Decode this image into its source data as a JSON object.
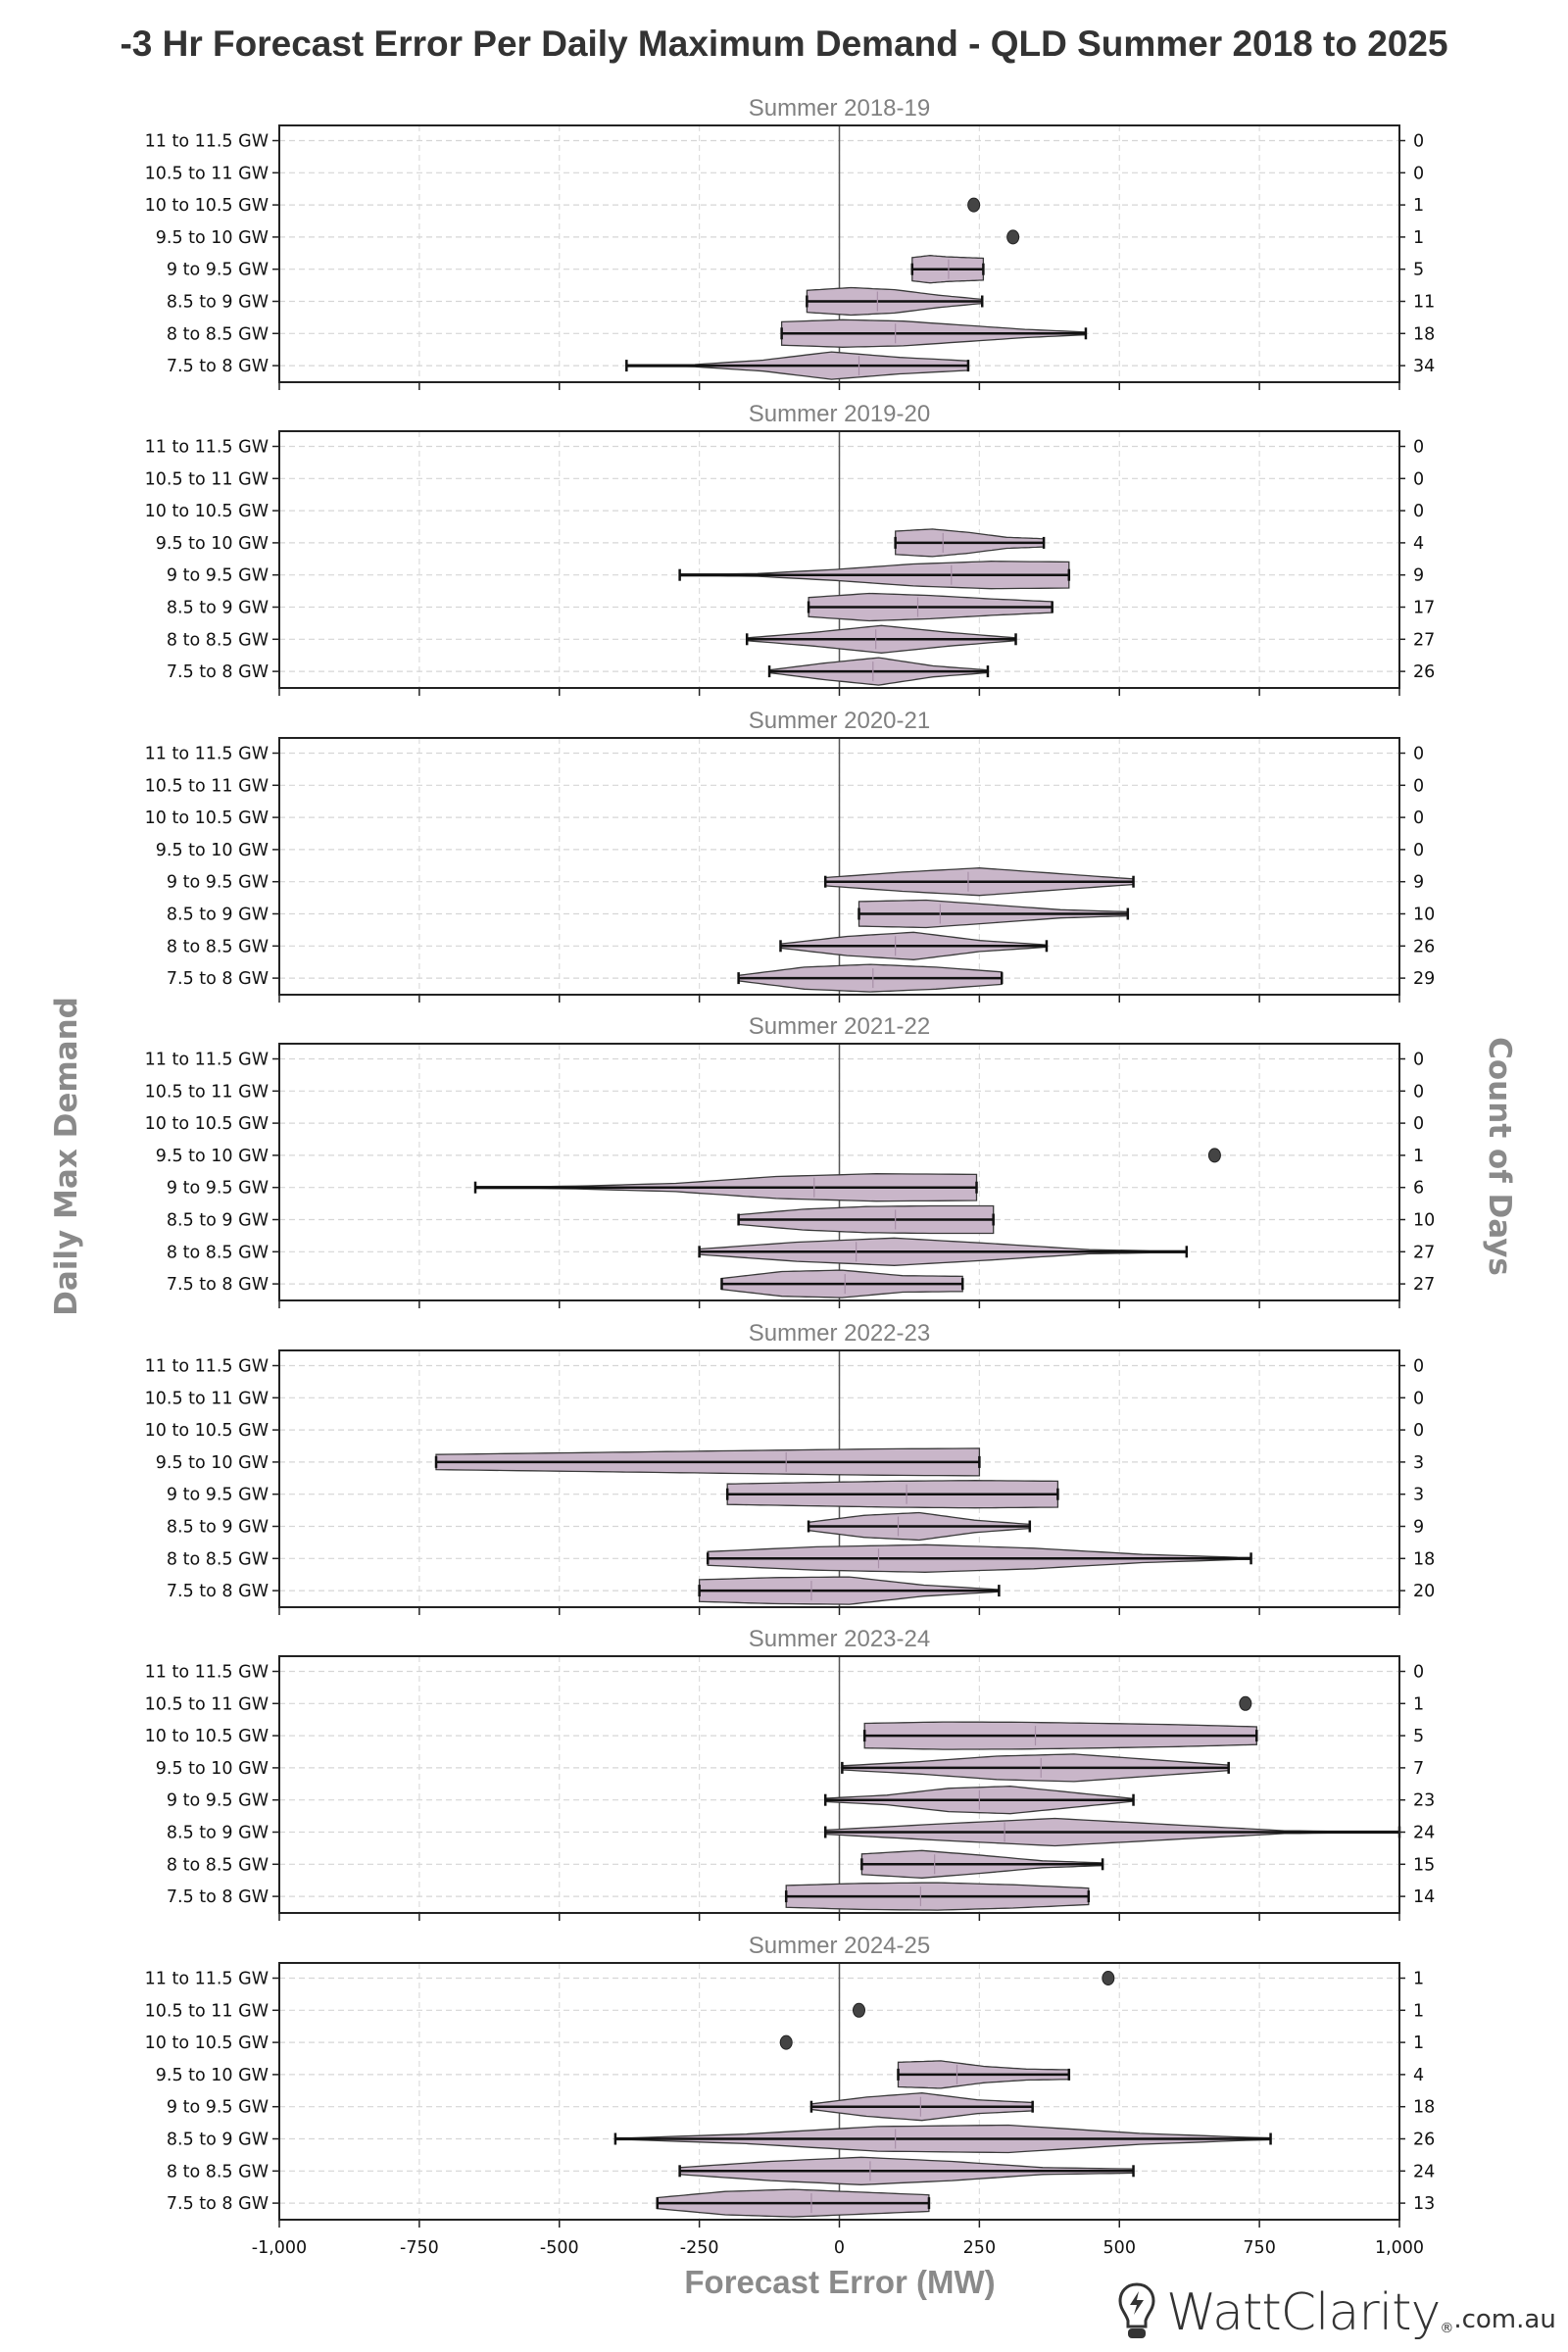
{
  "chart_data": {
    "type": "violin",
    "title": "-3 Hr Forecast Error Per Daily Maximum Demand - QLD Summer 2018 to 2025",
    "xlabel": "Forecast Error (MW)",
    "ylabel": "Daily Max Demand",
    "ylabel_right": "Count of Days",
    "xlim": [
      -1000,
      1000
    ],
    "x_ticks": [
      -1000,
      -750,
      -500,
      -250,
      0,
      250,
      500,
      750,
      1000
    ],
    "x_tick_labels": [
      "-1,000",
      "-750",
      "-500",
      "-250",
      "0",
      "250",
      "500",
      "750",
      "1,000"
    ],
    "categories": [
      "11 to 11.5 GW",
      "10.5 to 11 GW",
      "10 to 10.5 GW",
      "9.5 to 10 GW",
      "9 to 9.5 GW",
      "8.5 to 9 GW",
      "8 to 8.5 GW",
      "7.5 to 8 GW"
    ],
    "grid": true,
    "colors": {
      "violin_fill": "#c9b6c9",
      "violin_edge": "#3a3a3a",
      "point": "#444444",
      "title": "#333333",
      "axis_label": "#8a8a8a",
      "panel_title": "#808080"
    },
    "panels": [
      {
        "title": "Summer 2018-19",
        "counts": [
          0,
          0,
          1,
          1,
          5,
          11,
          18,
          34
        ],
        "violins": [
          null,
          null,
          {
            "point": 240
          },
          {
            "point": 310
          },
          {
            "min": 130,
            "max": 257,
            "median": 195,
            "peak": 160,
            "shape": [
              0.85,
              1,
              0.9,
              0.85,
              0.8
            ]
          },
          {
            "min": -58,
            "max": 255,
            "median": 68,
            "peak": 10,
            "shape": [
              0.8,
              1,
              0.85,
              0.45,
              0.15
            ]
          },
          {
            "min": -103,
            "max": 440,
            "median": 100,
            "peak": 20,
            "shape": [
              0.85,
              1,
              0.9,
              0.6,
              0.3,
              0.1
            ]
          },
          {
            "min": -380,
            "max": 230,
            "median": 35,
            "peak": 80,
            "shape": [
              0.02,
              0.08,
              0.4,
              1,
              0.6,
              0.35
            ]
          }
        ]
      },
      {
        "title": "Summer 2019-20",
        "counts": [
          0,
          0,
          0,
          4,
          9,
          17,
          27,
          26
        ],
        "violins": [
          null,
          null,
          null,
          {
            "min": 100,
            "max": 365,
            "median": 185,
            "peak": 145,
            "shape": [
              0.85,
              1,
              0.75,
              0.4,
              0.3
            ]
          },
          {
            "min": -285,
            "max": 410,
            "median": 200,
            "peak": 300,
            "shape": [
              0.04,
              0.1,
              0.4,
              0.8,
              1,
              0.95
            ]
          },
          {
            "min": -55,
            "max": 380,
            "median": 140,
            "peak": 100,
            "shape": [
              0.7,
              1,
              0.85,
              0.6,
              0.4
            ]
          },
          {
            "min": -165,
            "max": 315,
            "median": 65,
            "peak": 50,
            "shape": [
              0.1,
              0.5,
              1,
              0.5,
              0.1
            ]
          },
          {
            "min": -125,
            "max": 265,
            "median": 60,
            "peak": 40,
            "shape": [
              0.1,
              0.6,
              1,
              0.4,
              0.1
            ]
          }
        ]
      },
      {
        "title": "Summer 2020-21",
        "counts": [
          0,
          0,
          0,
          0,
          9,
          10,
          26,
          29
        ],
        "violins": [
          null,
          null,
          null,
          null,
          {
            "min": -25,
            "max": 525,
            "median": 230,
            "peak": 200,
            "shape": [
              0.3,
              0.7,
              1,
              0.6,
              0.2
            ]
          },
          {
            "min": 35,
            "max": 515,
            "median": 180,
            "peak": 120,
            "shape": [
              0.9,
              1,
              0.65,
              0.3,
              0.15
            ]
          },
          {
            "min": -105,
            "max": 370,
            "median": 100,
            "peak": 140,
            "shape": [
              0.15,
              0.7,
              1,
              0.4,
              0.08
            ]
          },
          {
            "min": -180,
            "max": 290,
            "median": 60,
            "peak": 100,
            "shape": [
              0.2,
              0.8,
              1,
              0.8,
              0.45
            ]
          }
        ]
      },
      {
        "title": "Summer 2021-22",
        "counts": [
          0,
          0,
          0,
          1,
          6,
          10,
          27,
          27
        ],
        "violins": [
          null,
          null,
          null,
          {
            "point": 670
          },
          {
            "min": -650,
            "max": 245,
            "median": -45,
            "peak": 100,
            "shape": [
              0.02,
              0.1,
              0.3,
              0.8,
              1,
              0.95
            ]
          },
          {
            "min": -180,
            "max": 275,
            "median": 100,
            "peak": 150,
            "shape": [
              0.35,
              0.75,
              0.95,
              1,
              1
            ]
          },
          {
            "min": -250,
            "max": 620,
            "median": 30,
            "peak": 30,
            "shape": [
              0.2,
              0.7,
              1,
              0.6,
              0.15,
              0.03
            ]
          },
          {
            "min": -210,
            "max": 220,
            "median": 10,
            "peak": -10,
            "shape": [
              0.4,
              0.9,
              1,
              0.6,
              0.55
            ]
          }
        ]
      },
      {
        "title": "Summer 2022-23",
        "counts": [
          0,
          0,
          0,
          3,
          3,
          9,
          18,
          20
        ],
        "violins": [
          null,
          null,
          null,
          {
            "min": -720,
            "max": 250,
            "median": -95,
            "peak": 250,
            "shape": [
              0.55,
              0.65,
              0.75,
              0.85,
              0.95,
              1
            ]
          },
          {
            "min": -200,
            "max": 390,
            "median": 120,
            "peak": 200,
            "shape": [
              0.75,
              0.85,
              0.95,
              1,
              0.95
            ]
          },
          {
            "min": -55,
            "max": 340,
            "median": 105,
            "peak": 110,
            "shape": [
              0.3,
              0.8,
              1,
              0.45,
              0.15
            ]
          },
          {
            "min": -235,
            "max": 735,
            "median": 70,
            "peak": 120,
            "shape": [
              0.5,
              0.85,
              1,
              0.75,
              0.3,
              0.05
            ]
          },
          {
            "min": -250,
            "max": 285,
            "median": -50,
            "peak": 0,
            "shape": [
              0.8,
              0.95,
              1,
              0.4,
              0.08
            ]
          }
        ]
      },
      {
        "title": "Summer 2023-24",
        "counts": [
          0,
          1,
          5,
          7,
          23,
          24,
          15,
          14
        ],
        "violins": [
          null,
          {
            "point": 725
          },
          {
            "min": 45,
            "max": 745,
            "median": 350,
            "peak": 250,
            "shape": [
              0.9,
              1,
              0.98,
              0.9,
              0.8,
              0.65
            ]
          },
          {
            "min": 5,
            "max": 695,
            "median": 360,
            "peak": 350,
            "shape": [
              0.15,
              0.45,
              0.85,
              1,
              0.6,
              0.2
            ]
          },
          {
            "min": -25,
            "max": 525,
            "median": 250,
            "peak": 260,
            "shape": [
              0.12,
              0.35,
              0.85,
              1,
              0.55,
              0.1
            ]
          },
          {
            "min": -25,
            "max": 1000,
            "median": 295,
            "peak": 240,
            "shape": [
              0.15,
              0.6,
              1,
              0.55,
              0.1,
              0.02
            ]
          },
          {
            "min": 40,
            "max": 470,
            "median": 170,
            "peak": 120,
            "shape": [
              0.75,
              1,
              0.65,
              0.25,
              0.1
            ]
          },
          {
            "min": -95,
            "max": 445,
            "median": 145,
            "peak": 150,
            "shape": [
              0.8,
              0.95,
              1,
              0.85,
              0.6
            ]
          }
        ]
      },
      {
        "title": "Summer 2024-25",
        "counts": [
          1,
          1,
          1,
          4,
          18,
          26,
          24,
          13
        ],
        "violins": [
          {
            "point": 480
          },
          {
            "point": 35
          },
          {
            "point": -95
          },
          {
            "min": 105,
            "max": 410,
            "median": 210,
            "peak": 150,
            "shape": [
              0.9,
              1,
              0.6,
              0.4,
              0.35
            ]
          },
          {
            "min": -50,
            "max": 345,
            "median": 145,
            "peak": 125,
            "shape": [
              0.2,
              0.7,
              1,
              0.5,
              0.3
            ]
          },
          {
            "min": -400,
            "max": 770,
            "median": 100,
            "peak": 125,
            "shape": [
              0.03,
              0.35,
              0.9,
              1,
              0.4,
              0.05
            ]
          },
          {
            "min": -285,
            "max": 525,
            "median": 55,
            "peak": 75,
            "shape": [
              0.25,
              0.7,
              1,
              0.7,
              0.25,
              0.15
            ]
          },
          {
            "min": -325,
            "max": 160,
            "median": -50,
            "peak": -50,
            "shape": [
              0.4,
              0.85,
              1,
              0.8,
              0.6
            ]
          }
        ]
      }
    ]
  },
  "branding": {
    "brand": "WattClarity",
    "reg": "®",
    "domain": ".com.au"
  }
}
